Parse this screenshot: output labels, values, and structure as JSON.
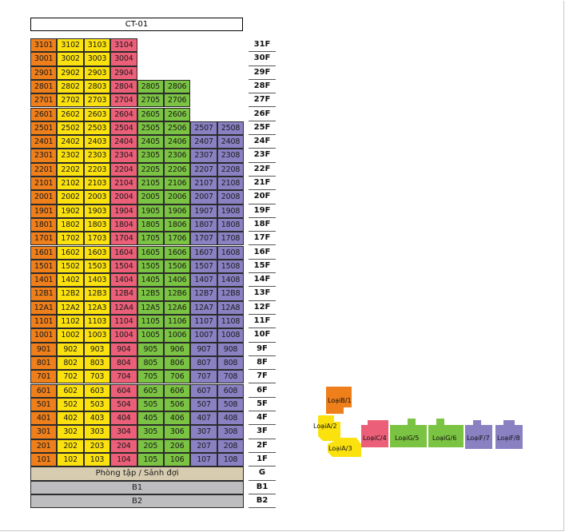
{
  "building": {
    "name": "CT-01"
  },
  "colors": {
    "orange": "#EE7F1B",
    "yellow": "#FBE20E",
    "pink": "#EC5F79",
    "green": "#7BC342",
    "purple": "#8A81C3",
    "tan": "#D8CCB0",
    "gray": "#BDBDC0"
  },
  "floors": [
    {
      "label": "31F",
      "units": [
        "3101",
        "3102",
        "3103",
        "3104"
      ]
    },
    {
      "label": "30F",
      "units": [
        "3001",
        "3002",
        "3003",
        "3004"
      ]
    },
    {
      "label": "29F",
      "units": [
        "2901",
        "2902",
        "2903",
        "2904"
      ]
    },
    {
      "label": "28F",
      "units": [
        "2801",
        "2802",
        "2803",
        "2804",
        "2805",
        "2806"
      ]
    },
    {
      "label": "27F",
      "units": [
        "2701",
        "2702",
        "2703",
        "2704",
        "2705",
        "2706"
      ]
    },
    {
      "label": "26F",
      "units": [
        "2601",
        "2602",
        "2603",
        "2604",
        "2605",
        "2606"
      ]
    },
    {
      "label": "25F",
      "units": [
        "2501",
        "2502",
        "2503",
        "2504",
        "2505",
        "2506",
        "2507",
        "2508"
      ]
    },
    {
      "label": "24F",
      "units": [
        "2401",
        "2402",
        "2403",
        "2404",
        "2405",
        "2406",
        "2407",
        "2408"
      ]
    },
    {
      "label": "23F",
      "units": [
        "2301",
        "2302",
        "2303",
        "2304",
        "2305",
        "2306",
        "2307",
        "2308"
      ]
    },
    {
      "label": "22F",
      "units": [
        "2201",
        "2202",
        "2203",
        "2204",
        "2205",
        "2206",
        "2207",
        "2208"
      ]
    },
    {
      "label": "21F",
      "units": [
        "2101",
        "2102",
        "2103",
        "2104",
        "2105",
        "2106",
        "2107",
        "2108"
      ]
    },
    {
      "label": "20F",
      "units": [
        "2001",
        "2002",
        "2003",
        "2004",
        "2005",
        "2006",
        "2007",
        "2008"
      ]
    },
    {
      "label": "19F",
      "units": [
        "1901",
        "1902",
        "1903",
        "1904",
        "1905",
        "1906",
        "1907",
        "1908"
      ]
    },
    {
      "label": "18F",
      "units": [
        "1801",
        "1802",
        "1803",
        "1804",
        "1805",
        "1806",
        "1807",
        "1808"
      ]
    },
    {
      "label": "17F",
      "units": [
        "1701",
        "1702",
        "1703",
        "1704",
        "1705",
        "1706",
        "1707",
        "1708"
      ]
    },
    {
      "label": "16F",
      "units": [
        "1601",
        "1602",
        "1603",
        "1604",
        "1605",
        "1606",
        "1607",
        "1608"
      ]
    },
    {
      "label": "15F",
      "units": [
        "1501",
        "1502",
        "1503",
        "1504",
        "1505",
        "1506",
        "1507",
        "1508"
      ]
    },
    {
      "label": "14F",
      "units": [
        "1401",
        "1402",
        "1403",
        "1404",
        "1405",
        "1406",
        "1407",
        "1408"
      ]
    },
    {
      "label": "13F",
      "units": [
        "12B1",
        "12B2",
        "12B3",
        "12B4",
        "12B5",
        "12B6",
        "12B7",
        "12B8"
      ]
    },
    {
      "label": "12F",
      "units": [
        "12A1",
        "12A2",
        "12A3",
        "12A4",
        "12A5",
        "12A6",
        "12A7",
        "12A8"
      ]
    },
    {
      "label": "11F",
      "units": [
        "1101",
        "1102",
        "1103",
        "1104",
        "1105",
        "1106",
        "1107",
        "1108"
      ]
    },
    {
      "label": "10F",
      "units": [
        "1001",
        "1002",
        "1003",
        "1004",
        "1005",
        "1006",
        "1007",
        "1008"
      ]
    },
    {
      "label": "9F",
      "units": [
        "901",
        "902",
        "903",
        "904",
        "905",
        "906",
        "907",
        "908"
      ]
    },
    {
      "label": "8F",
      "units": [
        "801",
        "802",
        "803",
        "804",
        "805",
        "806",
        "807",
        "808"
      ]
    },
    {
      "label": "7F",
      "units": [
        "701",
        "702",
        "703",
        "704",
        "705",
        "706",
        "707",
        "708"
      ]
    },
    {
      "label": "6F",
      "units": [
        "601",
        "602",
        "603",
        "604",
        "605",
        "606",
        "607",
        "608"
      ]
    },
    {
      "label": "5F",
      "units": [
        "501",
        "502",
        "503",
        "504",
        "505",
        "506",
        "507",
        "508"
      ]
    },
    {
      "label": "4F",
      "units": [
        "401",
        "402",
        "403",
        "404",
        "405",
        "406",
        "407",
        "408"
      ]
    },
    {
      "label": "3F",
      "units": [
        "301",
        "302",
        "303",
        "304",
        "305",
        "306",
        "307",
        "308"
      ]
    },
    {
      "label": "2F",
      "units": [
        "201",
        "202",
        "203",
        "204",
        "205",
        "206",
        "207",
        "208"
      ]
    },
    {
      "label": "1F",
      "units": [
        "101",
        "102",
        "103",
        "104",
        "105",
        "106",
        "107",
        "108"
      ]
    }
  ],
  "column_colors": [
    "orange",
    "yellow",
    "yellow",
    "pink",
    "green",
    "green",
    "purple",
    "purple"
  ],
  "base_levels": [
    {
      "name": "Phòng tập / Sảnh đợi",
      "label": "G",
      "color": "tan"
    },
    {
      "name": "B1",
      "label": "B1",
      "color": "gray"
    },
    {
      "name": "B2",
      "label": "B2",
      "color": "gray"
    }
  ],
  "legend": {
    "typeB": "LoạiB/1",
    "typeA": "LoạiA/2",
    "typeA3": "LoạiA/3",
    "typeC": "LoạiC/4",
    "typeG5": "LoạiG/5",
    "typeG6": "LoạiG/6",
    "typeF7": "LoạiF/7",
    "typeF8": "LoạiF/8"
  }
}
